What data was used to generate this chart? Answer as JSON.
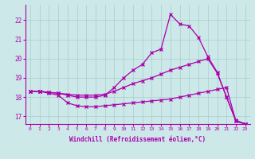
{
  "xlabel": "Windchill (Refroidissement éolien,°C)",
  "background_color": "#cce8e8",
  "line_color": "#aa00aa",
  "grid_color": "#aacccc",
  "xlim": [
    -0.5,
    23.5
  ],
  "ylim": [
    16.6,
    22.8
  ],
  "xticks": [
    0,
    1,
    2,
    3,
    4,
    5,
    6,
    7,
    8,
    9,
    10,
    11,
    12,
    13,
    14,
    15,
    16,
    17,
    18,
    19,
    20,
    21,
    22,
    23
  ],
  "yticks": [
    17,
    18,
    19,
    20,
    21,
    22
  ],
  "curves": [
    {
      "x": [
        0,
        1,
        2,
        3,
        4,
        5,
        6,
        7,
        8,
        9,
        10,
        11,
        12,
        13,
        14,
        15,
        16,
        17,
        18,
        19,
        20,
        21,
        22,
        23
      ],
      "y": [
        18.3,
        18.3,
        18.2,
        18.1,
        17.7,
        17.55,
        17.5,
        17.5,
        17.55,
        17.6,
        17.65,
        17.7,
        17.75,
        17.8,
        17.85,
        17.9,
        18.0,
        18.1,
        18.2,
        18.3,
        18.4,
        18.5,
        16.75,
        16.6
      ]
    },
    {
      "x": [
        0,
        1,
        2,
        3,
        4,
        5,
        6,
        7,
        8,
        9,
        10,
        11,
        12,
        13,
        14,
        15,
        16,
        17,
        18,
        19,
        20,
        21,
        22,
        23
      ],
      "y": [
        18.3,
        18.3,
        18.25,
        18.2,
        18.15,
        18.1,
        18.1,
        18.1,
        18.15,
        18.3,
        18.5,
        18.7,
        18.85,
        19.0,
        19.2,
        19.4,
        19.55,
        19.7,
        19.85,
        20.0,
        19.25,
        18.0,
        16.8,
        16.6
      ]
    },
    {
      "x": [
        0,
        1,
        2,
        3,
        4,
        5,
        6,
        7,
        8,
        9,
        10,
        11,
        12,
        13,
        14,
        15,
        16,
        17,
        18,
        19,
        20,
        21,
        22,
        23
      ],
      "y": [
        18.3,
        18.3,
        18.25,
        18.2,
        18.1,
        18.0,
        18.0,
        18.0,
        18.1,
        18.5,
        19.0,
        19.4,
        19.7,
        20.3,
        20.5,
        22.3,
        21.8,
        21.7,
        21.1,
        20.1,
        19.3,
        18.0,
        16.75,
        16.6
      ]
    }
  ]
}
